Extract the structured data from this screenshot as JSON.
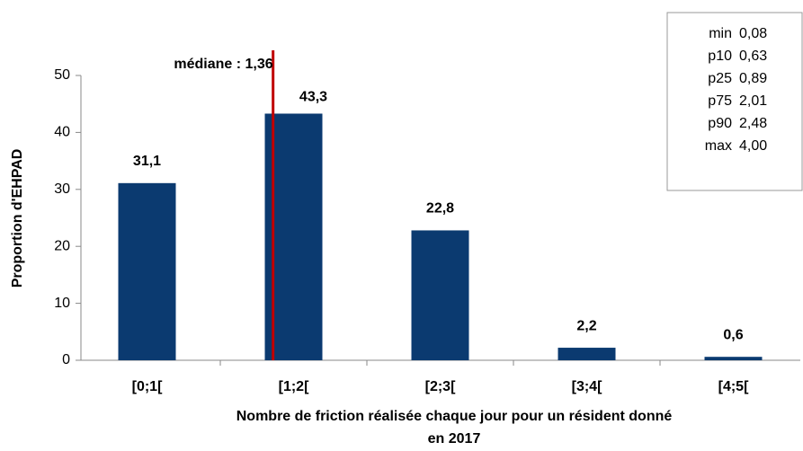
{
  "chart_data": {
    "type": "bar",
    "categories": [
      "[0;1[",
      "[1;2[",
      "[2;3[",
      "[3;4[",
      "[4;5["
    ],
    "values": [
      31.1,
      43.3,
      22.8,
      2.2,
      0.6
    ],
    "value_labels": [
      "31,1",
      "43,3",
      "22,8",
      "2,2",
      "0,6"
    ],
    "color": "#0b3a70",
    "ylim": [
      0,
      50
    ],
    "yticks": [
      0,
      10,
      20,
      30,
      40,
      50
    ],
    "ylabel": "Proportion d'EHPAD",
    "xlabel": [
      "Nombre de friction réalisée chaque jour pour un résident donné",
      "en 2017"
    ],
    "median": {
      "label": "médiane : 1,36",
      "value": 1.36,
      "color": "#c00000"
    },
    "stats": [
      {
        "name": "min",
        "value": "0,08"
      },
      {
        "name": "p10",
        "value": "0,63"
      },
      {
        "name": "p25",
        "value": "0,89"
      },
      {
        "name": "p75",
        "value": "2,01"
      },
      {
        "name": "p90",
        "value": "2,48"
      },
      {
        "name": "max",
        "value": "4,00"
      }
    ]
  }
}
